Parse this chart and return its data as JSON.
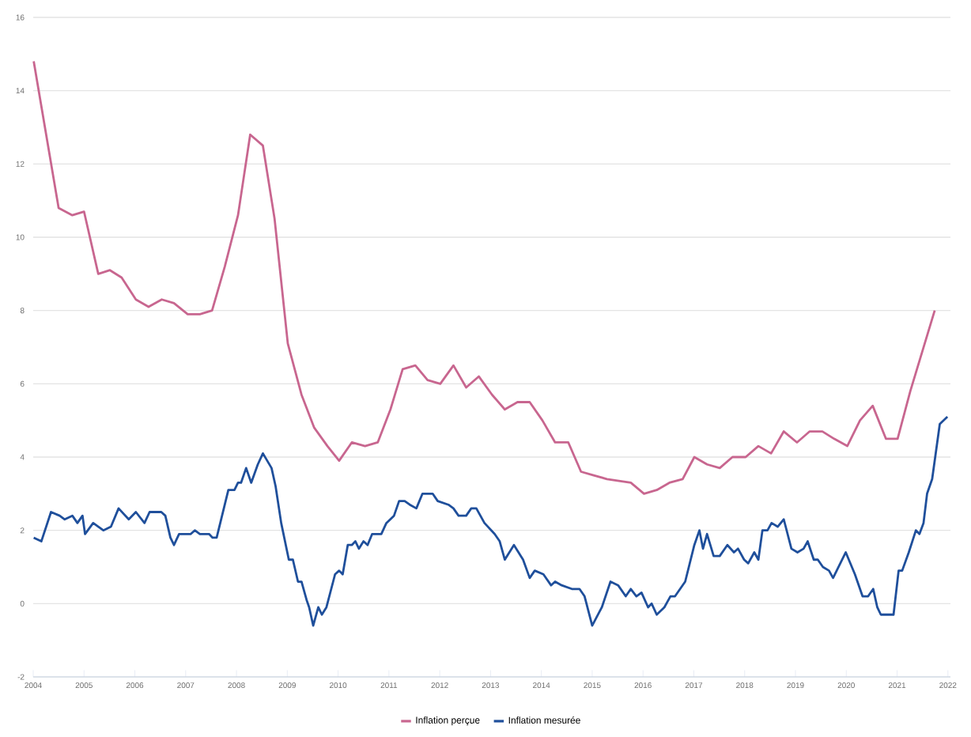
{
  "chart_data": {
    "type": "line",
    "xlim": [
      2004,
      2022.05
    ],
    "ylim": [
      -2,
      16
    ],
    "xticks": [
      2004,
      2005,
      2006,
      2007,
      2008,
      2009,
      2010,
      2011,
      2012,
      2013,
      2014,
      2015,
      2016,
      2017,
      2018,
      2019,
      2020,
      2021,
      2022
    ],
    "yticks": [
      -2,
      0,
      2,
      4,
      6,
      8,
      10,
      12,
      14,
      16
    ],
    "grid": "y",
    "legend": "bottom",
    "series": [
      {
        "name": "Inflation perçue",
        "color": "#c8668f",
        "x": [
          2004.01,
          2004.5,
          2004.77,
          2005.0,
          2005.28,
          2005.51,
          2005.74,
          2006.02,
          2006.27,
          2006.53,
          2006.77,
          2007.04,
          2007.28,
          2007.52,
          2007.77,
          2008.03,
          2008.27,
          2008.52,
          2008.75,
          2009.01,
          2009.28,
          2009.53,
          2009.79,
          2010.02,
          2010.27,
          2010.53,
          2010.78,
          2011.03,
          2011.27,
          2011.52,
          2011.76,
          2012.01,
          2012.27,
          2012.52,
          2012.77,
          2013.03,
          2013.28,
          2013.53,
          2013.77,
          2014.02,
          2014.27,
          2014.53,
          2014.78,
          2015.03,
          2015.29,
          2015.76,
          2016.02,
          2016.27,
          2016.52,
          2016.78,
          2017.01,
          2017.26,
          2017.51,
          2017.76,
          2018.02,
          2018.27,
          2018.52,
          2018.77,
          2019.03,
          2019.28,
          2019.53,
          2019.76,
          2020.02,
          2020.27,
          2020.52,
          2020.78,
          2021.01,
          2021.26,
          2021.74
        ],
        "values": [
          14.8,
          10.8,
          10.6,
          10.7,
          9.0,
          9.1,
          8.9,
          8.3,
          8.1,
          8.3,
          8.2,
          7.9,
          7.9,
          8.0,
          9.2,
          10.6,
          12.8,
          12.5,
          10.5,
          7.1,
          5.7,
          4.8,
          4.3,
          3.9,
          4.4,
          4.3,
          4.4,
          5.3,
          6.4,
          6.5,
          6.1,
          6.0,
          6.5,
          5.9,
          6.2,
          5.7,
          5.3,
          5.5,
          5.5,
          5.0,
          4.4,
          4.4,
          3.6,
          3.5,
          3.4,
          3.3,
          3.0,
          3.1,
          3.3,
          3.4,
          4.0,
          3.8,
          3.7,
          4.0,
          4.0,
          4.3,
          4.1,
          4.7,
          4.4,
          4.7,
          4.7,
          4.5,
          4.3,
          5.0,
          5.4,
          4.5,
          4.5,
          5.8,
          8.0
        ]
      },
      {
        "name": "Inflation mesurée",
        "color": "#1f4f9b",
        "x": [
          2004.01,
          2004.16,
          2004.35,
          2004.52,
          2004.62,
          2004.77,
          2004.87,
          2004.97,
          2005.02,
          2005.18,
          2005.38,
          2005.53,
          2005.68,
          2005.88,
          2006.02,
          2006.19,
          2006.29,
          2006.52,
          2006.6,
          2006.7,
          2006.77,
          2006.87,
          2007.1,
          2007.18,
          2007.28,
          2007.46,
          2007.53,
          2007.61,
          2007.84,
          2007.96,
          2008.03,
          2008.09,
          2008.19,
          2008.29,
          2008.42,
          2008.52,
          2008.69,
          2008.77,
          2008.88,
          2009.03,
          2009.11,
          2009.21,
          2009.28,
          2009.38,
          2009.43,
          2009.51,
          2009.61,
          2009.68,
          2009.77,
          2009.94,
          2010.02,
          2010.09,
          2010.19,
          2010.27,
          2010.34,
          2010.41,
          2010.5,
          2010.58,
          2010.67,
          2010.85,
          2010.95,
          2011.1,
          2011.2,
          2011.31,
          2011.41,
          2011.54,
          2011.66,
          2011.86,
          2011.96,
          2012.17,
          2012.27,
          2012.37,
          2012.52,
          2012.62,
          2012.72,
          2012.88,
          2013.08,
          2013.18,
          2013.28,
          2013.46,
          2013.64,
          2013.77,
          2013.87,
          2014.04,
          2014.19,
          2014.27,
          2014.4,
          2014.6,
          2014.75,
          2014.85,
          2015.0,
          2015.19,
          2015.36,
          2015.51,
          2015.66,
          2015.76,
          2015.87,
          2015.97,
          2016.1,
          2016.17,
          2016.27,
          2016.42,
          2016.54,
          2016.63,
          2016.83,
          2017.01,
          2017.11,
          2017.18,
          2017.26,
          2017.39,
          2017.51,
          2017.66,
          2017.79,
          2017.87,
          2017.99,
          2018.07,
          2018.19,
          2018.27,
          2018.35,
          2018.45,
          2018.53,
          2018.65,
          2018.77,
          2018.92,
          2019.04,
          2019.16,
          2019.24,
          2019.36,
          2019.44,
          2019.54,
          2019.66,
          2019.74,
          2019.99,
          2020.17,
          2020.32,
          2020.43,
          2020.53,
          2020.61,
          2020.68,
          2020.93,
          2021.03,
          2021.1,
          2021.23,
          2021.37,
          2021.44,
          2021.52,
          2021.59,
          2021.69,
          2021.84,
          2021.99
        ],
        "values": [
          1.8,
          1.7,
          2.5,
          2.4,
          2.3,
          2.4,
          2.2,
          2.4,
          1.9,
          2.2,
          2.0,
          2.1,
          2.6,
          2.3,
          2.5,
          2.2,
          2.5,
          2.5,
          2.4,
          1.8,
          1.6,
          1.9,
          1.9,
          2.0,
          1.9,
          1.9,
          1.8,
          1.8,
          3.1,
          3.1,
          3.3,
          3.3,
          3.7,
          3.3,
          3.8,
          4.1,
          3.7,
          3.2,
          2.2,
          1.2,
          1.2,
          0.6,
          0.6,
          0.1,
          -0.1,
          -0.6,
          -0.1,
          -0.3,
          -0.1,
          0.8,
          0.9,
          0.8,
          1.6,
          1.6,
          1.7,
          1.5,
          1.7,
          1.6,
          1.9,
          1.9,
          2.2,
          2.4,
          2.8,
          2.8,
          2.7,
          2.6,
          3.0,
          3.0,
          2.8,
          2.7,
          2.6,
          2.4,
          2.4,
          2.6,
          2.6,
          2.2,
          1.9,
          1.7,
          1.2,
          1.6,
          1.2,
          0.7,
          0.9,
          0.8,
          0.5,
          0.6,
          0.5,
          0.4,
          0.4,
          0.2,
          -0.6,
          -0.1,
          0.6,
          0.5,
          0.2,
          0.4,
          0.2,
          0.3,
          -0.1,
          0.0,
          -0.3,
          -0.1,
          0.2,
          0.2,
          0.6,
          1.6,
          2.0,
          1.5,
          1.9,
          1.3,
          1.3,
          1.6,
          1.4,
          1.5,
          1.2,
          1.1,
          1.4,
          1.2,
          2.0,
          2.0,
          2.2,
          2.1,
          2.3,
          1.5,
          1.4,
          1.5,
          1.7,
          1.2,
          1.2,
          1.0,
          0.9,
          0.7,
          1.4,
          0.8,
          0.2,
          0.2,
          0.4,
          -0.1,
          -0.3,
          -0.3,
          0.9,
          0.9,
          1.4,
          2.0,
          1.9,
          2.2,
          3.0,
          3.4,
          4.9,
          5.1
        ]
      }
    ]
  }
}
